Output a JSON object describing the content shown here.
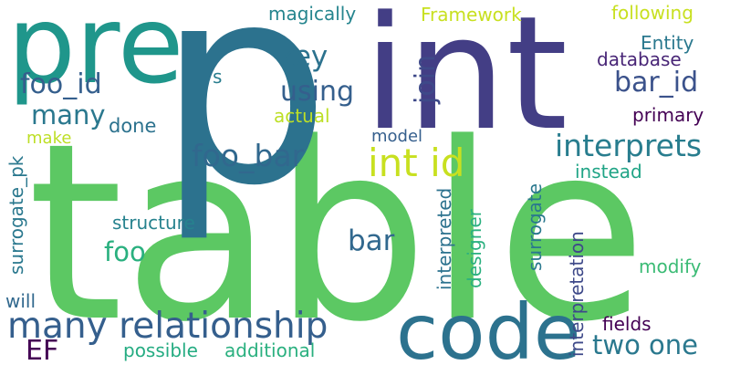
{
  "words": [
    {
      "text": "table",
      "color": "#5cc863"
    },
    {
      "text": "p",
      "color": "#2c728e"
    },
    {
      "text": "int",
      "color": "#433e85"
    },
    {
      "text": "pre",
      "color": "#1f968b"
    },
    {
      "text": "code",
      "color": "#2c728e"
    },
    {
      "text": "many relationship",
      "color": "#355f8d"
    },
    {
      "text": "int id",
      "color": "#c8e020"
    },
    {
      "text": "interprets",
      "color": "#287d8e"
    },
    {
      "text": "foo_bar",
      "color": "#31688e"
    },
    {
      "text": "two one",
      "color": "#2a788e"
    },
    {
      "text": "bar_id",
      "color": "#3b528b"
    },
    {
      "text": "foo_id",
      "color": "#355f8d"
    },
    {
      "text": "many",
      "color": "#2a788e"
    },
    {
      "text": "using",
      "color": "#355f8d"
    },
    {
      "text": "key",
      "color": "#2c728e"
    },
    {
      "text": "join",
      "color": "#3e4989"
    },
    {
      "text": "bar",
      "color": "#31688e"
    },
    {
      "text": "foo",
      "color": "#2ab07f"
    },
    {
      "text": "EF",
      "color": "#440154"
    },
    {
      "text": "magically",
      "color": "#25858e"
    },
    {
      "text": "Framework",
      "color": "#c8e020"
    },
    {
      "text": "following",
      "color": "#c8e020"
    },
    {
      "text": "Entity",
      "color": "#2a788e"
    },
    {
      "text": "database",
      "color": "#482576"
    },
    {
      "text": "primary",
      "color": "#440154"
    },
    {
      "text": "actual",
      "color": "#bddf26"
    },
    {
      "text": "make",
      "color": "#bddf26"
    },
    {
      "text": "done",
      "color": "#2c728e"
    },
    {
      "text": "model",
      "color": "#355f8d"
    },
    {
      "text": "instead",
      "color": "#20a486"
    },
    {
      "text": "structure",
      "color": "#26828e"
    },
    {
      "text": "modify",
      "color": "#3bbb75"
    },
    {
      "text": "will",
      "color": "#31688e"
    },
    {
      "text": "fields",
      "color": "#440154"
    },
    {
      "text": "possible",
      "color": "#25ac82"
    },
    {
      "text": "additional",
      "color": "#2ab07f"
    },
    {
      "text": "s",
      "color": "#287d8e"
    },
    {
      "text": "surrogate_pk",
      "color": "#2a788e"
    },
    {
      "text": "interpreted",
      "color": "#2c728e"
    },
    {
      "text": "designer",
      "color": "#2ab07f"
    },
    {
      "text": "surrogate",
      "color": "#2a788e"
    },
    {
      "text": "interpretation",
      "color": "#3e4989"
    }
  ]
}
